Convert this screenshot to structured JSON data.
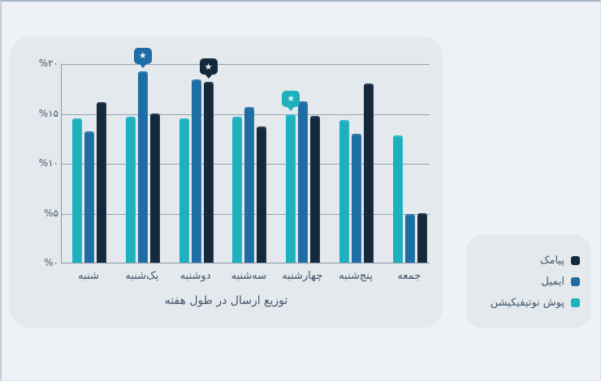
{
  "page": {
    "background": "#eef1f6",
    "card_background": "#e3e9ed"
  },
  "chart_data": {
    "type": "bar",
    "title": "توزیع ارسال در طول هفته",
    "categories": [
      "شنبه",
      "یک‌شنبه",
      "دوشنبه",
      "سه‌شنبه",
      "چهارشنبه",
      "پنج‌شنبه",
      "جمعه"
    ],
    "series": [
      {
        "name": "پوش نوتیفیکیشن",
        "color": "#1db0bf",
        "values": [
          14.5,
          14.6,
          14.5,
          14.6,
          14.9,
          14.3,
          12.8
        ]
      },
      {
        "name": "ایمیل",
        "color": "#1e6da4",
        "values": [
          13.2,
          19.2,
          18.4,
          15.6,
          16.2,
          12.9,
          4.9
        ]
      },
      {
        "name": "پیامک",
        "color": "#15293d",
        "values": [
          16.1,
          15.0,
          18.1,
          13.7,
          14.7,
          18.0,
          5.0
        ]
      }
    ],
    "xlabel": "",
    "ylabel": "",
    "ylim": [
      0,
      20
    ],
    "y_ticks": [
      {
        "value": 20,
        "label": "%۲۰"
      },
      {
        "value": 15,
        "label": "%۱۵"
      },
      {
        "value": 10,
        "label": "%۱۰"
      },
      {
        "value": 5,
        "label": "%۵"
      },
      {
        "value": 0,
        "label": "%۰"
      }
    ],
    "grid": true,
    "legend_position": "bottom-right",
    "annotations": [
      {
        "type": "star-badge",
        "meaning": "series-maximum",
        "series": "ایمیل",
        "category": "یک‌شنبه"
      },
      {
        "type": "star-badge",
        "meaning": "series-maximum",
        "series": "پیامک",
        "category": "دوشنبه"
      },
      {
        "type": "star-badge",
        "meaning": "series-maximum",
        "series": "پوش نوتیفیکیشن",
        "category": "چهارشنبه"
      }
    ]
  },
  "legend": {
    "items": [
      {
        "label": "پیامک",
        "color": "#15293d"
      },
      {
        "label": "ایمیل",
        "color": "#1e6da4"
      },
      {
        "label": "پوش نوتیفیکیشن",
        "color": "#1db0bf"
      }
    ]
  }
}
